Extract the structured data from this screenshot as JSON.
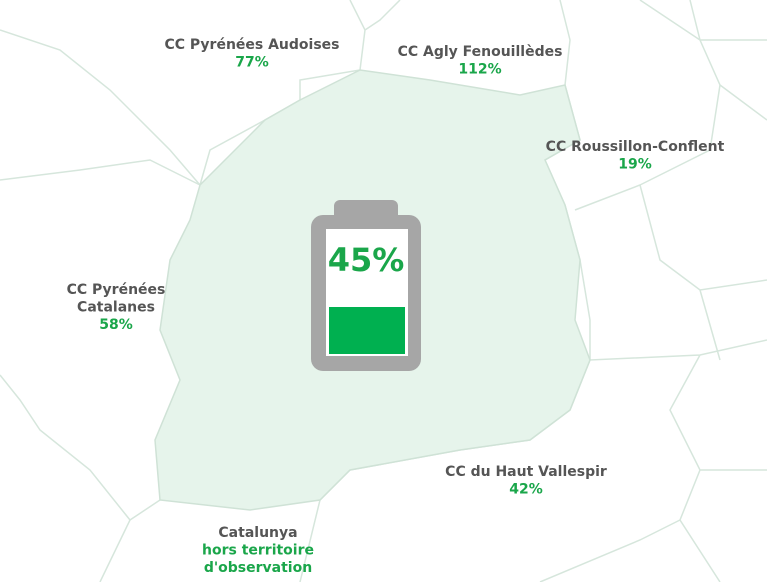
{
  "center": {
    "label": "45%"
  },
  "regions": [
    {
      "name_lines": [
        "CC Pyrénées Audoises"
      ],
      "value_lines": [
        "77%"
      ]
    },
    {
      "name_lines": [
        "CC Agly Fenouillèdes"
      ],
      "value_lines": [
        "112%"
      ]
    },
    {
      "name_lines": [
        "CC Roussillon-Conflent"
      ],
      "value_lines": [
        "19%"
      ]
    },
    {
      "name_lines": [
        "CC Pyrénées",
        "Catalanes"
      ],
      "value_lines": [
        "58%"
      ]
    },
    {
      "name_lines": [
        "CC du Haut Vallespir"
      ],
      "value_lines": [
        "42%"
      ]
    },
    {
      "name_lines": [
        "Catalunya"
      ],
      "value_lines": [
        "hors territoire",
        "d'observation"
      ]
    }
  ]
}
